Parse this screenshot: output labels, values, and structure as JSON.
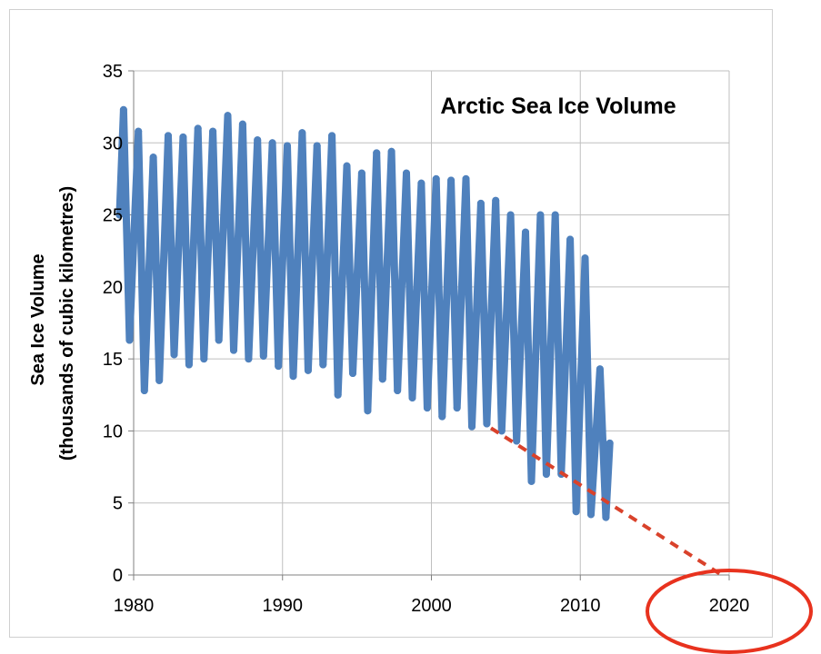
{
  "chart_data": {
    "type": "scatter",
    "title": "Arctic Sea Ice Volume",
    "ylabel_line1": "Sea Ice Volume",
    "ylabel_line2": "(thousands of cubic kilometres)",
    "xlabel": "",
    "xlim": [
      1980,
      2020
    ],
    "ylim": [
      0,
      35
    ],
    "x_ticks": [
      1980,
      1990,
      2000,
      2010,
      2020
    ],
    "y_ticks": [
      0,
      5,
      10,
      15,
      20,
      25,
      30,
      35
    ],
    "x_tick_labels": [
      "1980",
      "1990",
      "2000",
      "2010",
      "2020"
    ],
    "y_tick_labels": [
      "0",
      "5",
      "10",
      "15",
      "20",
      "25",
      "30",
      "35"
    ],
    "grid": true,
    "series": [
      {
        "color": "#4f81bd",
        "annual_cycles": [
          {
            "year": 1979,
            "max": 32.3,
            "min": 16.3
          },
          {
            "year": 1980,
            "max": 30.8,
            "min": 12.8
          },
          {
            "year": 1981,
            "max": 29.0,
            "min": 13.5
          },
          {
            "year": 1982,
            "max": 30.5,
            "min": 15.3
          },
          {
            "year": 1983,
            "max": 30.4,
            "min": 14.6
          },
          {
            "year": 1984,
            "max": 31.0,
            "min": 15.0
          },
          {
            "year": 1985,
            "max": 30.8,
            "min": 16.3
          },
          {
            "year": 1986,
            "max": 31.9,
            "min": 15.6
          },
          {
            "year": 1987,
            "max": 31.3,
            "min": 15.0
          },
          {
            "year": 1988,
            "max": 30.2,
            "min": 15.2
          },
          {
            "year": 1989,
            "max": 30.0,
            "min": 14.5
          },
          {
            "year": 1990,
            "max": 29.8,
            "min": 13.8
          },
          {
            "year": 1991,
            "max": 30.7,
            "min": 14.2
          },
          {
            "year": 1992,
            "max": 29.8,
            "min": 14.6
          },
          {
            "year": 1993,
            "max": 30.5,
            "min": 12.5
          },
          {
            "year": 1994,
            "max": 28.4,
            "min": 14.0
          },
          {
            "year": 1995,
            "max": 27.9,
            "min": 11.4
          },
          {
            "year": 1996,
            "max": 29.3,
            "min": 13.6
          },
          {
            "year": 1997,
            "max": 29.4,
            "min": 12.8
          },
          {
            "year": 1998,
            "max": 27.9,
            "min": 12.3
          },
          {
            "year": 1999,
            "max": 27.2,
            "min": 11.6
          },
          {
            "year": 2000,
            "max": 27.5,
            "min": 11.0
          },
          {
            "year": 2001,
            "max": 27.4,
            "min": 11.6
          },
          {
            "year": 2002,
            "max": 27.5,
            "min": 10.3
          },
          {
            "year": 2003,
            "max": 25.8,
            "min": 10.5
          },
          {
            "year": 2004,
            "max": 26.0,
            "min": 10.0
          },
          {
            "year": 2005,
            "max": 25.0,
            "min": 9.3
          },
          {
            "year": 2006,
            "max": 23.8,
            "min": 6.5
          },
          {
            "year": 2007,
            "max": 25.0,
            "min": 7.0
          },
          {
            "year": 2008,
            "max": 25.0,
            "min": 7.0
          },
          {
            "year": 2009,
            "max": 23.3,
            "min": 4.4
          },
          {
            "year": 2010,
            "max": 22.0,
            "min": 4.2
          },
          {
            "year": 2011,
            "max": 14.3,
            "min": 4.0
          }
        ]
      }
    ],
    "trend_line": {
      "color": "#d9422b",
      "style": "dashed",
      "x": [
        2004,
        2019.5
      ],
      "y": [
        10.2,
        0
      ]
    },
    "highlight_circle": {
      "color": "#e8321e",
      "around_x": 2020,
      "around_y": 0
    }
  }
}
